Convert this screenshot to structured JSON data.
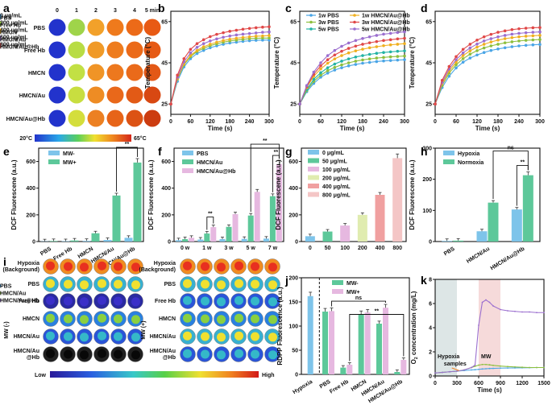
{
  "panel_labels": [
    "a",
    "b",
    "c",
    "d",
    "e",
    "f",
    "g",
    "h",
    "i",
    "j",
    "k"
  ],
  "panel_a": {
    "times": [
      "0",
      "1",
      "2",
      "3",
      "4",
      "5 min"
    ],
    "rows": [
      "PBS",
      "Free Hb",
      "HMCN",
      "HMCN/Au",
      "HMCN/Au@Hb"
    ],
    "colorbar": {
      "min": "20°C",
      "max": "65°C"
    },
    "cells": [
      [
        "#2233cc",
        "#9fd44a",
        "#f2a12a",
        "#ef7a1c",
        "#ec6a18",
        "#e85a14"
      ],
      [
        "#2233cc",
        "#b8dc44",
        "#f09a28",
        "#ee7c1e",
        "#eb6a19",
        "#e65a15"
      ],
      [
        "#2233cc",
        "#c2e044",
        "#f09426",
        "#ed781e",
        "#ea6a1a",
        "#e35816"
      ],
      [
        "#2233cc",
        "#c8de40",
        "#ee8c24",
        "#e9681a",
        "#e25a16",
        "#d84812"
      ],
      [
        "#2233cc",
        "#d4de3c",
        "#ec8022",
        "#e76418",
        "#dc5214",
        "#cc3c10"
      ]
    ]
  },
  "chart_data": [
    {
      "id": "b",
      "type": "line",
      "xlabel": "Time (s)",
      "ylabel": "Temperature (°C)",
      "xlim": [
        0,
        300
      ],
      "ylim": [
        20,
        70
      ],
      "xticks": [
        0,
        60,
        120,
        180,
        240,
        300
      ],
      "yticks": [
        25,
        45,
        65
      ],
      "x": [
        0,
        20,
        40,
        60,
        80,
        100,
        120,
        140,
        160,
        180,
        200,
        220,
        240,
        260,
        280,
        300
      ],
      "series": [
        {
          "name": "PBS",
          "color": "#4aa5e6",
          "values": [
            25,
            36,
            43,
            47,
            49.5,
            51,
            52.3,
            53.2,
            54,
            54.6,
            55,
            55.4,
            55.7,
            55.9,
            56,
            56
          ]
        },
        {
          "name": "Free Hb",
          "color": "#8dbf3e",
          "values": [
            25,
            37,
            44,
            48,
            50.5,
            52,
            53.3,
            54.2,
            55,
            55.6,
            56,
            56.4,
            56.7,
            56.9,
            57,
            57
          ]
        },
        {
          "name": "HMCN",
          "color": "#f0b020",
          "values": [
            25,
            37.5,
            44.5,
            48.6,
            51,
            52.8,
            54,
            55,
            55.8,
            56.4,
            56.9,
            57.3,
            57.6,
            57.9,
            58,
            58.2
          ]
        },
        {
          "name": "HMCN/Au",
          "color": "#9b6fcf",
          "values": [
            25,
            38,
            45.5,
            49.8,
            52.5,
            54.3,
            55.6,
            56.6,
            57.4,
            58,
            58.5,
            58.9,
            59.2,
            59.5,
            59.8,
            60
          ]
        },
        {
          "name": "HMCN/Au@Hb",
          "color": "#e04848",
          "values": [
            25,
            39,
            47,
            51.5,
            54.3,
            56.2,
            57.7,
            58.8,
            59.6,
            60.3,
            60.8,
            61.3,
            61.7,
            62,
            62.3,
            62.5
          ]
        }
      ]
    },
    {
      "id": "c",
      "type": "line",
      "xlabel": "Time (s)",
      "ylabel": "Temperature (°C)",
      "xlim": [
        0,
        300
      ],
      "ylim": [
        20,
        70
      ],
      "xticks": [
        0,
        60,
        120,
        180,
        240,
        300
      ],
      "yticks": [
        25,
        45,
        65
      ],
      "x": [
        0,
        20,
        40,
        60,
        80,
        100,
        120,
        140,
        160,
        180,
        200,
        220,
        240,
        260,
        280,
        300
      ],
      "series": [
        {
          "name": "1w PBS",
          "color": "#4aa5e6",
          "values": [
            25,
            31,
            35,
            38,
            40,
            41.5,
            42.6,
            43.5,
            44.2,
            44.8,
            45.2,
            45.6,
            45.9,
            46.1,
            46.3,
            46.5
          ]
        },
        {
          "name": "3w PBS",
          "color": "#8dbf3e",
          "values": [
            25,
            31.5,
            36,
            39,
            41.2,
            42.8,
            44,
            45,
            45.8,
            46.4,
            46.9,
            47.3,
            47.6,
            47.9,
            48.1,
            48.3
          ]
        },
        {
          "name": "5w PBS",
          "color": "#23b3a5",
          "values": [
            25,
            32,
            37,
            40.2,
            42.6,
            44.4,
            45.8,
            46.9,
            47.8,
            48.5,
            49.1,
            49.6,
            50,
            50.3,
            50.6,
            50.8
          ]
        },
        {
          "name": "1w HMCN/Au@Hb",
          "color": "#f0b020",
          "values": [
            25,
            33,
            38.5,
            42,
            44.8,
            46.9,
            48.5,
            49.8,
            50.8,
            51.6,
            52.3,
            52.8,
            53.3,
            53.7,
            54,
            54.3
          ]
        },
        {
          "name": "3w HMCN/Au@Hb",
          "color": "#e04848",
          "values": [
            25,
            33.5,
            39.5,
            43.5,
            46.5,
            48.8,
            50.6,
            52,
            53.1,
            54,
            54.7,
            55.3,
            55.8,
            56.2,
            56.6,
            56.9
          ]
        },
        {
          "name": "5w HMCN/Au@Hb",
          "color": "#9b6fcf",
          "values": [
            25,
            34,
            40.5,
            45,
            48.5,
            51,
            53,
            54.6,
            55.8,
            56.8,
            57.6,
            58.3,
            58.9,
            59.3,
            59.7,
            60
          ]
        }
      ]
    },
    {
      "id": "d",
      "type": "line",
      "xlabel": "Time (s)",
      "ylabel": "Temperature (°C)",
      "xlim": [
        0,
        300
      ],
      "ylim": [
        20,
        70
      ],
      "xticks": [
        0,
        60,
        120,
        180,
        240,
        300
      ],
      "yticks": [
        25,
        45,
        65
      ],
      "x": [
        0,
        20,
        40,
        60,
        80,
        100,
        120,
        140,
        160,
        180,
        200,
        220,
        240,
        260,
        280,
        300
      ],
      "series": [
        {
          "name": "0 μg/mL",
          "color": "#4aa5e6",
          "values": [
            25,
            33,
            38.5,
            42.5,
            45.3,
            47.3,
            48.8,
            50,
            51,
            51.7,
            52.3,
            52.8,
            53.2,
            53.5,
            53.7,
            53.9
          ]
        },
        {
          "name": "200 μg/mL",
          "color": "#8dbf3e",
          "values": [
            25,
            34,
            40,
            44,
            47,
            49.2,
            50.9,
            52.2,
            53.2,
            54,
            54.7,
            55.2,
            55.6,
            55.9,
            56.1,
            56.3
          ]
        },
        {
          "name": "400 μg/mL",
          "color": "#f0b020",
          "values": [
            25,
            35,
            41,
            45.3,
            48.5,
            50.8,
            52.6,
            54,
            55.1,
            56,
            56.7,
            57.2,
            57.6,
            57.9,
            58.1,
            58.3
          ]
        },
        {
          "name": "600 μg/mL",
          "color": "#9b6fcf",
          "values": [
            25,
            35.5,
            42,
            46.5,
            49.8,
            52.2,
            54.1,
            55.6,
            56.7,
            57.6,
            58.3,
            58.9,
            59.3,
            59.6,
            59.8,
            60
          ]
        },
        {
          "name": "800 μg/mL",
          "color": "#e04848",
          "values": [
            25,
            36.5,
            43.2,
            48,
            51.5,
            54,
            56,
            57.6,
            58.8,
            59.8,
            60.5,
            61.1,
            61.5,
            61.8,
            62,
            62.1
          ]
        }
      ]
    },
    {
      "id": "e",
      "type": "bar",
      "ylabel": "DCF Fluorescene (a.u.)",
      "ylim": [
        0,
        700
      ],
      "yticks": [
        0,
        200,
        400,
        600
      ],
      "categories": [
        "PBS",
        "Free Hb",
        "HMCN",
        "HMCN/Au",
        "HMCN/Au@Hb"
      ],
      "series": [
        {
          "name": "MW-",
          "color": "#7ec4ea",
          "values": [
            2,
            3,
            5,
            12,
            28
          ]
        },
        {
          "name": "MW+",
          "color": "#5dc89a",
          "values": [
            4,
            8,
            62,
            345,
            592
          ]
        }
      ],
      "annotations": [
        "**"
      ]
    },
    {
      "id": "f",
      "type": "bar",
      "ylabel": "DCF Fluorescene (a.u.)",
      "ylim": [
        0,
        700
      ],
      "yticks": [
        0,
        200,
        400,
        600
      ],
      "categories": [
        "0 w",
        "1 w",
        "3 w",
        "5 w",
        "7 w"
      ],
      "series": [
        {
          "name": "PBS",
          "color": "#7ec4ea",
          "values": [
            10,
            15,
            18,
            20,
            22
          ]
        },
        {
          "name": "HMCN/Au",
          "color": "#5dc89a",
          "values": [
            18,
            60,
            110,
            195,
            340
          ]
        },
        {
          "name": "HMCN/Au@Hb",
          "color": "#e6b8e0",
          "values": [
            28,
            108,
            205,
            372,
            580
          ]
        }
      ],
      "annotations": [
        "**",
        "**",
        "**"
      ]
    },
    {
      "id": "g",
      "type": "bar",
      "ylabel": "DCF Fluorescene (a.u.)",
      "ylim": [
        0,
        700
      ],
      "yticks": [
        0,
        200,
        400,
        600
      ],
      "categories": [
        "0",
        "50",
        "100",
        "200",
        "400",
        "800"
      ],
      "series": [
        {
          "name": "Fluorescence",
          "values": [
            40,
            75,
            120,
            200,
            350,
            625
          ],
          "colors": [
            "#7ec4ea",
            "#5dc89a",
            "#e6b8e0",
            "#e0ecb0",
            "#f0a0a0",
            "#f4c6c6"
          ]
        }
      ],
      "legend": [
        "0 μg/mL",
        "50 μg/mL",
        "100 μg/mL",
        "200 μg/mL",
        "400 μg/mL",
        "800 μg/mL"
      ]
    },
    {
      "id": "h",
      "type": "bar",
      "ylabel": "DCF Fluorescene (a.u.)",
      "ylim": [
        0,
        300
      ],
      "yticks": [
        0,
        100,
        200,
        300
      ],
      "categories": [
        "PBS",
        "HMCN/Au",
        "HMCN/Au@Hb"
      ],
      "series": [
        {
          "name": "Hypoxia",
          "color": "#7ec4ea",
          "values": [
            2,
            33,
            103
          ]
        },
        {
          "name": "Normoxia",
          "color": "#5dc89a",
          "values": [
            3,
            125,
            213
          ]
        }
      ],
      "annotations": [
        "ns",
        "**"
      ]
    },
    {
      "id": "j",
      "type": "bar",
      "ylabel": "RDPP Fluorescence (a.u.)",
      "ylim": [
        0,
        200
      ],
      "yticks": [
        0,
        50,
        100,
        150,
        200
      ],
      "categories": [
        "Hypoxia",
        "PBS",
        "Free Hb",
        "HMCN",
        "HMCN/Au",
        "HMCN/Au@Hb"
      ],
      "series": [
        {
          "name": "MW-",
          "color": "#5dc89a",
          "values": [
            162,
            130,
            14,
            125,
            105,
            5
          ]
        },
        {
          "name": "MW+",
          "color": "#e6b8e0",
          "values": [
            null,
            131,
            20,
            128,
            138,
            30
          ]
        }
      ],
      "hypoxia_color": "#7ec4ea",
      "annotations": [
        "ns",
        "**"
      ]
    },
    {
      "id": "k",
      "type": "line",
      "xlabel": "Time (s)",
      "ylabel": "O2 concentration (mg/L)",
      "xlim": [
        0,
        1500
      ],
      "ylim": [
        0,
        8
      ],
      "xticks": [
        0,
        300,
        600,
        900,
        1200,
        1500
      ],
      "yticks": [
        0,
        2,
        4,
        6,
        8
      ],
      "x": [
        0,
        100,
        200,
        300,
        400,
        500,
        550,
        600,
        650,
        700,
        750,
        800,
        900,
        1000,
        1100,
        1200,
        1300,
        1400,
        1500
      ],
      "series": [
        {
          "name": "PBS",
          "color": "#4aa5e6",
          "values": [
            0.25,
            0.3,
            0.35,
            0.4,
            0.45,
            0.5,
            0.52,
            0.55,
            0.58,
            0.6,
            0.62,
            0.63,
            0.65,
            0.66,
            0.67,
            0.68,
            0.69,
            0.7,
            0.7
          ]
        },
        {
          "name": "HMCN/Au",
          "color": "#8dbf3e",
          "values": [
            0.25,
            0.3,
            0.35,
            0.4,
            0.5,
            0.7,
            0.8,
            0.9,
            0.95,
            0.95,
            0.92,
            0.88,
            0.82,
            0.78,
            0.75,
            0.72,
            0.7,
            0.7,
            0.7
          ]
        },
        {
          "name": "HMCN/Au@Hb",
          "color": "#9b6fcf",
          "values": [
            0.25,
            0.3,
            0.35,
            0.4,
            0.5,
            0.7,
            0.9,
            4.2,
            6.1,
            6.3,
            6.1,
            5.8,
            5.5,
            5.4,
            5.35,
            5.3,
            5.3,
            5.25,
            5.25
          ]
        }
      ],
      "regions": [
        {
          "label": "Hypoxia",
          "from": 0,
          "to": 300,
          "color": "#dde6e6"
        },
        {
          "label": "MW",
          "from": 600,
          "to": 900,
          "color": "#f6dada"
        }
      ],
      "annotation": "samples"
    }
  ],
  "panel_i": {
    "rows_left": [
      "Hypoxia\n(Background)",
      "PBS",
      "Free Hb",
      "HMCN",
      "HMCN/Au",
      "HMCN/Au\n@Hb"
    ],
    "rows_right": [
      "Hypoxia\n(Background)",
      "PBS",
      "Free Hb",
      "HMCN",
      "HMCN/Au",
      "HMCN/Au\n@Hb"
    ],
    "group_left": "MW (-)",
    "group_right": "MW (+)",
    "scale_low": "Low",
    "scale_high": "High",
    "levels_left": [
      0.95,
      0.6,
      0.15,
      0.45,
      0.35,
      0.02
    ],
    "levels_right": [
      0.95,
      0.65,
      0.25,
      0.5,
      0.65,
      0.35
    ]
  }
}
